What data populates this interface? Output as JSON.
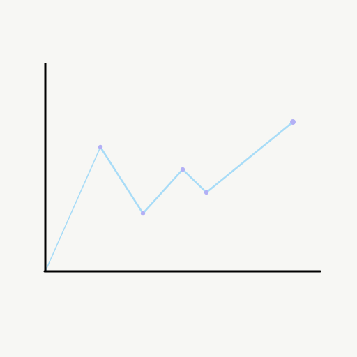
{
  "chart_data": {
    "type": "line",
    "title": "",
    "xlabel": "",
    "ylabel": "",
    "x": [
      0,
      79,
      140,
      197,
      231,
      355
    ],
    "y": [
      0,
      178,
      83,
      146,
      113,
      214
    ],
    "xlim": [
      0,
      393
    ],
    "ylim": [
      0,
      300
    ],
    "grid": false,
    "legend": "none",
    "colors": {
      "line": "#a8dcf7",
      "marker": "#b3b0f5",
      "axis": "#000000",
      "background": "#f7f7f4"
    }
  }
}
